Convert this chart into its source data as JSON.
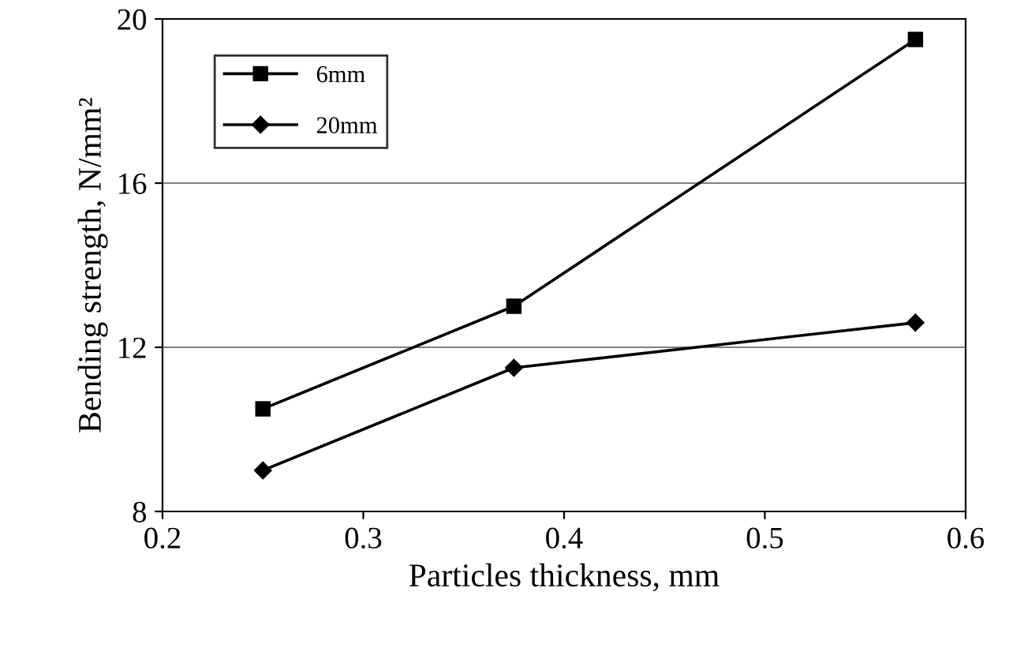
{
  "chart_data": {
    "type": "line",
    "xlabel": "Particles thickness, mm",
    "ylabel": "Bending strength, N/mm²",
    "x": [
      0.25,
      0.375,
      0.575
    ],
    "series": [
      {
        "name": "6mm",
        "color": "#000000",
        "marker": "square",
        "values": [
          10.5,
          13.0,
          19.5
        ]
      },
      {
        "name": "20mm",
        "color": "#000000",
        "marker": "diamond",
        "values": [
          9.0,
          11.5,
          12.6
        ]
      }
    ],
    "xlim": [
      0.2,
      0.6
    ],
    "xticks": [
      0.2,
      0.3,
      0.4,
      0.5,
      0.6
    ],
    "ylim": [
      8,
      20
    ],
    "yticks": [
      8,
      12,
      16,
      20
    ],
    "grid": "y",
    "legend": "top left",
    "line_style": "solid"
  }
}
